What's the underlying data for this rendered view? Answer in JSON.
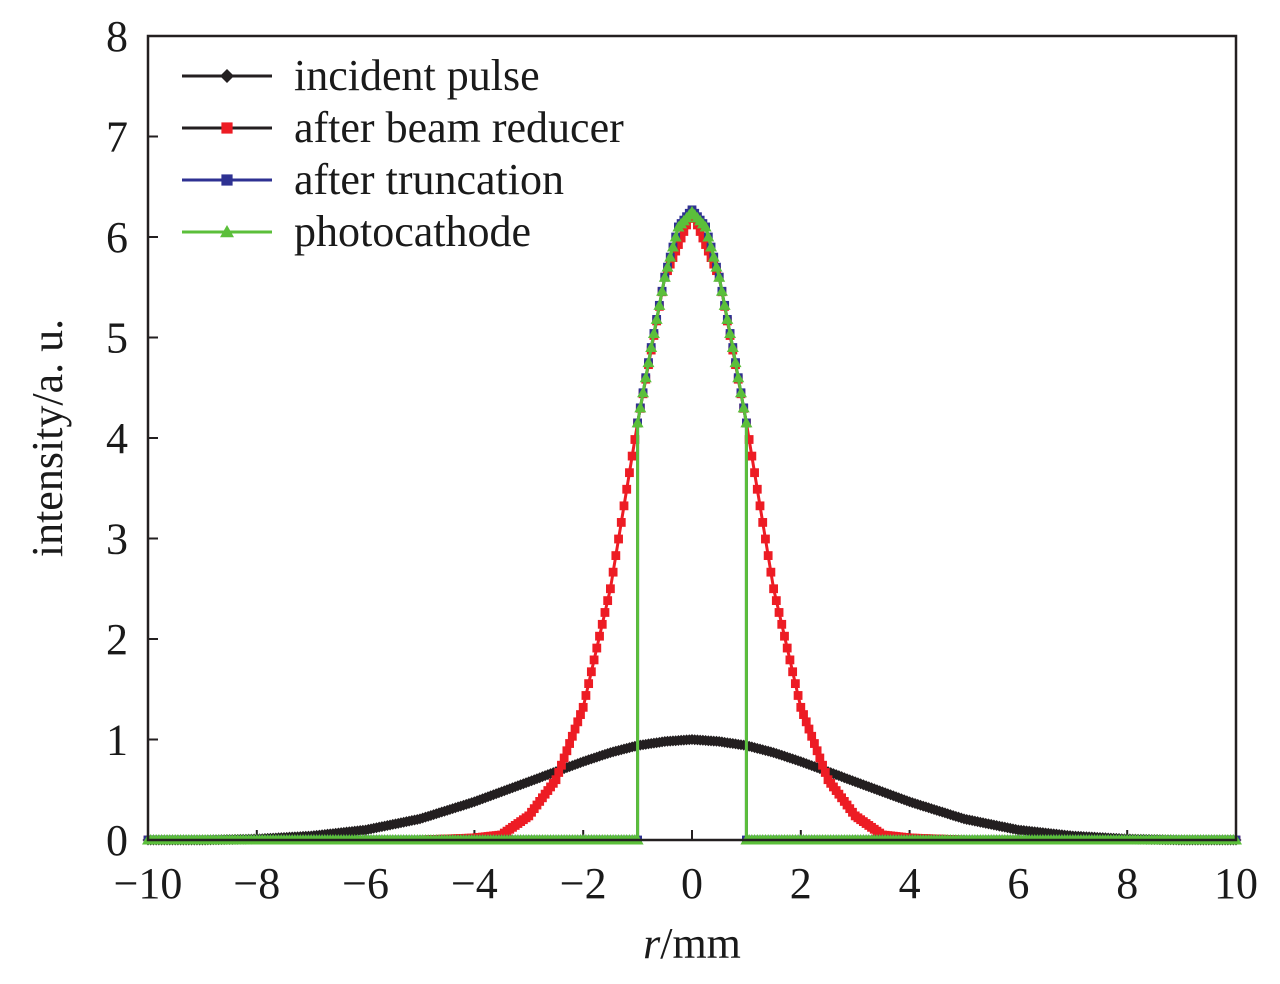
{
  "chart_data": {
    "type": "line",
    "xlabel_italic": "r",
    "xlabel_unit": "/mm",
    "ylabel": "intensity/a. u.",
    "xlim": [
      -10,
      10
    ],
    "ylim": [
      0,
      8
    ],
    "x_ticks": [
      -10,
      -8,
      -6,
      -4,
      -2,
      0,
      2,
      4,
      6,
      8,
      10
    ],
    "x_tick_labels": [
      "−10",
      "−8",
      "−6",
      "−4",
      "−2",
      "0",
      "2",
      "4",
      "6",
      "8",
      "10"
    ],
    "y_ticks": [
      0,
      1,
      2,
      3,
      4,
      5,
      6,
      7,
      8
    ],
    "y_tick_labels": [
      "0",
      "1",
      "2",
      "3",
      "4",
      "5",
      "6",
      "7",
      "8"
    ],
    "grid": false,
    "legend_position": "top-left",
    "series": [
      {
        "name": "incident pulse",
        "color": "#231f20",
        "marker": "diamond",
        "x": [
          -10,
          -9,
          -8,
          -7,
          -6,
          -5,
          -4,
          -3,
          -2.5,
          -2,
          -1.5,
          -1,
          -0.5,
          0,
          0.5,
          1,
          1.5,
          2,
          2.5,
          3,
          4,
          5,
          6,
          7,
          8,
          9,
          10
        ],
        "y": [
          0.0,
          0.0,
          0.01,
          0.04,
          0.1,
          0.21,
          0.38,
          0.58,
          0.68,
          0.78,
          0.87,
          0.94,
          0.98,
          1.0,
          0.98,
          0.94,
          0.87,
          0.78,
          0.68,
          0.58,
          0.38,
          0.21,
          0.1,
          0.04,
          0.01,
          0.0,
          0.0
        ]
      },
      {
        "name": "after beam reducer",
        "color": "#ed1c24",
        "marker": "square",
        "x": [
          -10,
          -5,
          -4,
          -3.5,
          -3,
          -2.5,
          -2,
          -1.5,
          -1,
          -0.5,
          0,
          0.5,
          1,
          1.5,
          2,
          2.5,
          3,
          3.5,
          4,
          5,
          10
        ],
        "y": [
          0.0,
          0.0,
          0.02,
          0.05,
          0.24,
          0.6,
          1.32,
          2.5,
          4.15,
          5.6,
          6.25,
          5.6,
          4.15,
          2.5,
          1.32,
          0.6,
          0.24,
          0.05,
          0.02,
          0.0,
          0.0
        ]
      },
      {
        "name": "after truncation",
        "color": "#2e3192",
        "marker": "square",
        "x": [
          -10,
          -1,
          -1,
          -0.75,
          -0.5,
          -0.25,
          0,
          0.25,
          0.5,
          0.75,
          1,
          1,
          10
        ],
        "y": [
          0.0,
          0.0,
          4.15,
          4.9,
          5.6,
          6.1,
          6.27,
          6.1,
          5.6,
          4.9,
          4.15,
          0.0,
          0.0
        ]
      },
      {
        "name": "photocathode",
        "color": "#5bbf3a",
        "marker": "triangle",
        "x": [
          -10,
          -1,
          -1,
          -0.75,
          -0.5,
          -0.25,
          0,
          0.25,
          0.5,
          0.75,
          1,
          1,
          10
        ],
        "y": [
          0.0,
          0.0,
          4.15,
          4.9,
          5.6,
          6.1,
          6.25,
          6.1,
          5.6,
          4.9,
          4.15,
          0.0,
          0.0
        ]
      }
    ]
  }
}
